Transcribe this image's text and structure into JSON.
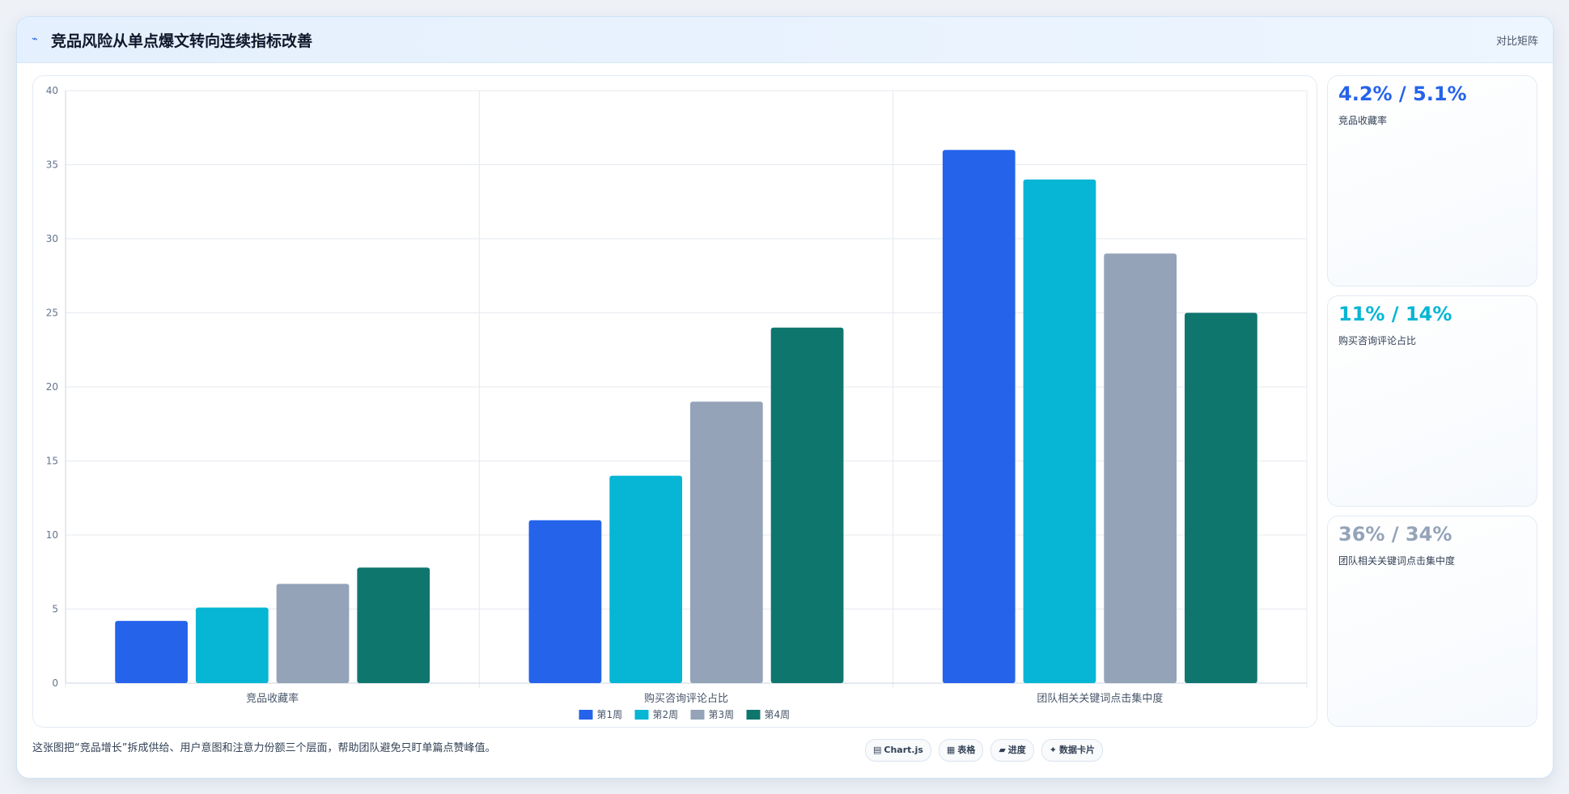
{
  "header": {
    "title": "竞品风险从单点爆文转向连续指标改善",
    "action_label": "对比矩阵",
    "icon": "trend-icon"
  },
  "colors": {
    "week1": "#2563eb",
    "week2": "#06b6d4",
    "week3": "#94a3b8",
    "week4": "#0f766e"
  },
  "chart_data": {
    "type": "bar",
    "categories": [
      "竞品收藏率",
      "购买咨询评论占比",
      "团队相关关键词点击集中度"
    ],
    "series": [
      {
        "name": "第1周",
        "values": [
          4.2,
          11,
          36
        ],
        "color": "#2563eb"
      },
      {
        "name": "第2周",
        "values": [
          5.1,
          14,
          34
        ],
        "color": "#06b6d4"
      },
      {
        "name": "第3周",
        "values": [
          6.7,
          19,
          29
        ],
        "color": "#94a3b8"
      },
      {
        "name": "第4周",
        "values": [
          7.8,
          24,
          25
        ],
        "color": "#0f766e"
      }
    ],
    "ylim": [
      0,
      40
    ],
    "yticks": [
      0,
      5,
      10,
      15,
      20,
      25,
      30,
      35,
      40
    ],
    "grid": true,
    "legend": "bottom-center",
    "title": "",
    "xlabel": "",
    "ylabel": ""
  },
  "kpis": [
    {
      "value": "4.2% / 5.1%",
      "label": "竞品收藏率",
      "color": "#2563eb"
    },
    {
      "value": "11% / 14%",
      "label": "购买咨询评论占比",
      "color": "#06b6d4"
    },
    {
      "value": "36% / 34%",
      "label": "团队相关关键词点击集中度",
      "color": "#94a3b8"
    }
  ],
  "footnote": "这张图把“竞品增长”拆成供给、用户意图和注意力份额三个层面，帮助团队避免只盯单篇点赞峰值。",
  "tags": [
    {
      "icon": "▤",
      "icon_name": "chart-icon",
      "label": "Chart.js"
    },
    {
      "icon": "▦",
      "icon_name": "table-icon",
      "label": "表格"
    },
    {
      "icon": "▰",
      "icon_name": "progress-icon",
      "label": "进度"
    },
    {
      "icon": "✦",
      "icon_name": "sparkle-icon",
      "label": "数据卡片"
    }
  ]
}
